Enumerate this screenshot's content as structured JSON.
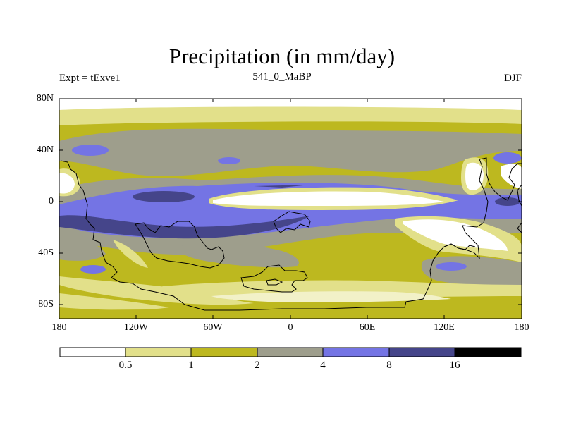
{
  "title": "Precipitation (in mm/day)",
  "subtitle_left": "Expt = tExve1",
  "subtitle_center": "541_0_MaBP",
  "subtitle_right": "DJF",
  "lat_labels": [
    "80N",
    "40N",
    "0",
    "40S",
    "80S"
  ],
  "lon_labels": [
    "180",
    "120W",
    "60W",
    "0",
    "60E",
    "120E",
    "180"
  ],
  "colorbar": {
    "levels": [
      "0.5",
      "1",
      "2",
      "4",
      "8",
      "16"
    ],
    "colors": [
      "#ffffff",
      "#e2e08a",
      "#bdb81f",
      "#9e9e8c",
      "#7474e4",
      "#45458a",
      "#000000"
    ]
  }
}
